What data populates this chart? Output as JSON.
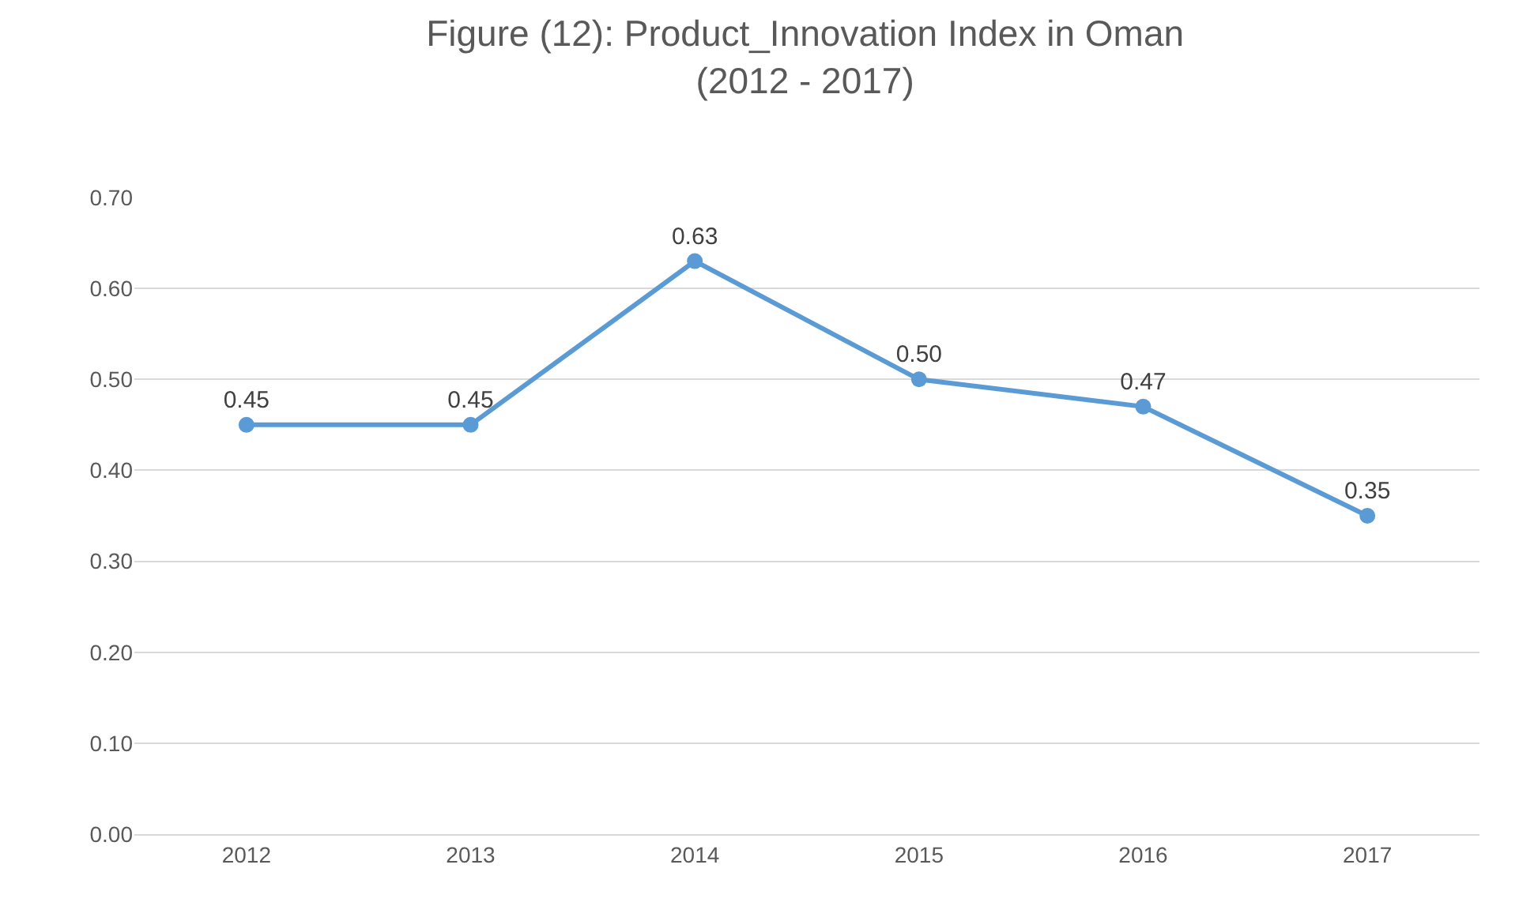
{
  "chart_data": {
    "type": "line",
    "title": "Figure (12): Product_Innovation Index in Oman\n(2012 - 2017)",
    "categories": [
      "2012",
      "2013",
      "2014",
      "2015",
      "2016",
      "2017"
    ],
    "values": [
      0.45,
      0.45,
      0.63,
      0.5,
      0.47,
      0.35
    ],
    "value_labels": [
      "0.45",
      "0.45",
      "0.63",
      "0.50",
      "0.47",
      "0.35"
    ],
    "color": "#5b9bd5",
    "ylim": [
      0,
      0.7
    ],
    "yticks": [
      {
        "value": 0,
        "label": "0.00"
      },
      {
        "value": 0.1,
        "label": "0.10"
      },
      {
        "value": 0.2,
        "label": "0.20"
      },
      {
        "value": 0.3,
        "label": "0.30"
      },
      {
        "value": 0.4,
        "label": "0.40"
      },
      {
        "value": 0.5,
        "label": "0.50"
      },
      {
        "value": 0.6,
        "label": "0.60"
      },
      {
        "value": 0.7,
        "label": "0.70"
      }
    ],
    "grid": "y",
    "marker": "circle",
    "line_style": "solid"
  }
}
